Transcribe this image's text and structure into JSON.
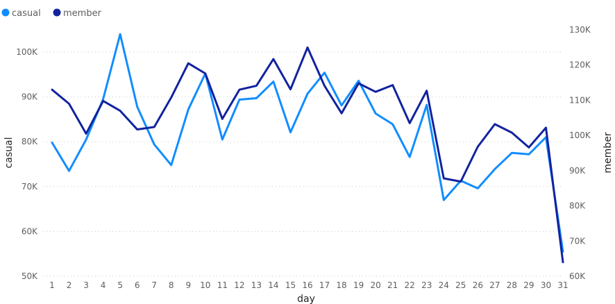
{
  "chart_data": {
    "type": "line",
    "legend_position": "top-left",
    "grid": true,
    "xlabel": "day",
    "ylabel_left": "casual",
    "ylabel_right": "member",
    "categories": [
      "1",
      "2",
      "3",
      "4",
      "5",
      "6",
      "7",
      "8",
      "9",
      "10",
      "11",
      "12",
      "13",
      "14",
      "15",
      "16",
      "17",
      "18",
      "19",
      "20",
      "21",
      "22",
      "23",
      "24",
      "25",
      "26",
      "27",
      "28",
      "29",
      "30",
      "31"
    ],
    "y_left": {
      "range": [
        50000,
        100000
      ],
      "ticks": [
        50000,
        60000,
        70000,
        80000,
        90000,
        100000
      ],
      "tick_labels": [
        "50K",
        "60K",
        "70K",
        "80K",
        "90K",
        "100K"
      ]
    },
    "y_right": {
      "range": [
        60000,
        130000
      ],
      "ticks": [
        60000,
        70000,
        80000,
        90000,
        100000,
        110000,
        120000,
        130000
      ],
      "tick_labels": [
        "60K",
        "70K",
        "80K",
        "90K",
        "100K",
        "110K",
        "120K",
        "130K"
      ]
    },
    "series": [
      {
        "name": "casual",
        "axis": "left",
        "color": "#118dff",
        "values": [
          79800,
          73500,
          80500,
          89500,
          104000,
          87800,
          79400,
          74800,
          87200,
          95200,
          80500,
          89400,
          89700,
          93400,
          82100,
          90700,
          95400,
          88100,
          93600,
          86300,
          83900,
          76600,
          88200,
          67000,
          71300,
          69600,
          73900,
          77500,
          77200,
          81000,
          55500
        ]
      },
      {
        "name": "member",
        "axis": "right",
        "color": "#12239e",
        "values": [
          113000,
          109000,
          100500,
          109800,
          107000,
          101700,
          102400,
          110800,
          120500,
          117600,
          104700,
          113000,
          114100,
          121700,
          113100,
          125000,
          114100,
          106300,
          114800,
          112400,
          114300,
          103500,
          112700,
          87800,
          86900,
          96800,
          103200,
          100800,
          96600,
          102200,
          64000
        ]
      }
    ]
  }
}
